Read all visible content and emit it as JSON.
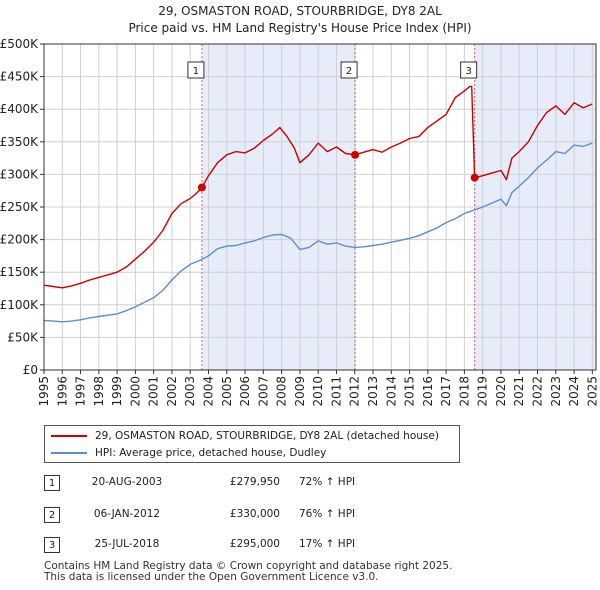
{
  "title_line1": "29, OSMASTON ROAD, STOURBRIDGE, DY8 2AL",
  "title_line2": "Price paid vs. HM Land Registry's House Price Index (HPI)",
  "colors": {
    "price_line": "#cc0000",
    "hpi_line": "#5b8ed0",
    "shade": "#e6ecfa",
    "marker_line": "#e06060",
    "grid": "#d0d0d0"
  },
  "chart_data": {
    "type": "line",
    "title": "29, OSMASTON ROAD, STOURBRIDGE, DY8 2AL — Price paid vs. HM Land Registry's House Price Index (HPI)",
    "xlabel": "",
    "ylabel": "",
    "xlim": [
      1995.0,
      2025.2
    ],
    "ylim": [
      0,
      500000
    ],
    "y_ticks": [
      0,
      50000,
      100000,
      150000,
      200000,
      250000,
      300000,
      350000,
      400000,
      450000,
      500000
    ],
    "y_tick_labels": [
      "£0",
      "£50K",
      "£100K",
      "£150K",
      "£200K",
      "£250K",
      "£300K",
      "£350K",
      "£400K",
      "£450K",
      "£500K"
    ],
    "x_ticks": [
      1995,
      1996,
      1997,
      1998,
      1999,
      2000,
      2001,
      2002,
      2003,
      2004,
      2005,
      2006,
      2007,
      2008,
      2009,
      2010,
      2011,
      2012,
      2013,
      2014,
      2015,
      2016,
      2017,
      2018,
      2019,
      2020,
      2021,
      2022,
      2023,
      2024,
      2025
    ],
    "x_tick_labels": [
      "1995",
      "1996",
      "1997",
      "1998",
      "1999",
      "2000",
      "2001",
      "2002",
      "2003",
      "2004",
      "2005",
      "2006",
      "2007",
      "2008",
      "2009",
      "2010",
      "2011",
      "2012",
      "2013",
      "2014",
      "2015",
      "2016",
      "2017",
      "2018",
      "2019",
      "2020",
      "2021",
      "2022",
      "2023",
      "2024",
      "2025"
    ],
    "grid": true,
    "series": [
      {
        "name": "29, OSMASTON ROAD, STOURBRIDGE, DY8 2AL (detached house)",
        "color": "#cc0000",
        "x": [
          1995.0,
          1995.5,
          1996.0,
          1996.5,
          1997.0,
          1997.5,
          1998.0,
          1998.5,
          1999.0,
          1999.5,
          2000.0,
          2000.5,
          2001.0,
          2001.5,
          2002.0,
          2002.5,
          2003.0,
          2003.3,
          2003.64,
          2004.0,
          2004.5,
          2005.0,
          2005.5,
          2006.0,
          2006.5,
          2007.0,
          2007.5,
          2007.9,
          2008.3,
          2008.7,
          2009.0,
          2009.5,
          2010.0,
          2010.5,
          2011.0,
          2011.5,
          2012.02,
          2012.5,
          2013.0,
          2013.5,
          2014.0,
          2014.5,
          2015.0,
          2015.5,
          2016.0,
          2016.5,
          2017.0,
          2017.5,
          2018.0,
          2018.3,
          2018.4,
          2018.56,
          2019.0,
          2019.5,
          2020.0,
          2020.3,
          2020.6,
          2021.0,
          2021.5,
          2022.0,
          2022.5,
          2023.0,
          2023.5,
          2024.0,
          2024.5,
          2025.0
        ],
        "y": [
          130000,
          128000,
          126000,
          129000,
          133000,
          138000,
          142000,
          146000,
          150000,
          158000,
          170000,
          182000,
          196000,
          214000,
          240000,
          255000,
          263000,
          270000,
          279950,
          298000,
          318000,
          330000,
          335000,
          333000,
          340000,
          352000,
          362000,
          372000,
          358000,
          340000,
          318000,
          330000,
          348000,
          335000,
          342000,
          332000,
          330000,
          334000,
          338000,
          334000,
          342000,
          348000,
          355000,
          358000,
          372000,
          382000,
          392000,
          418000,
          428000,
          435000,
          435000,
          295000,
          298000,
          302000,
          306000,
          292000,
          325000,
          335000,
          350000,
          375000,
          395000,
          405000,
          392000,
          410000,
          402000,
          408000
        ]
      },
      {
        "name": "HPI: Average price, detached house, Dudley",
        "color": "#5b8ed0",
        "x": [
          1995.0,
          1995.5,
          1996.0,
          1996.5,
          1997.0,
          1997.5,
          1998.0,
          1998.5,
          1999.0,
          1999.5,
          2000.0,
          2000.5,
          2001.0,
          2001.5,
          2002.0,
          2002.5,
          2003.0,
          2003.5,
          2004.0,
          2004.5,
          2005.0,
          2005.5,
          2006.0,
          2006.5,
          2007.0,
          2007.5,
          2008.0,
          2008.5,
          2009.0,
          2009.5,
          2010.0,
          2010.5,
          2011.0,
          2011.5,
          2012.0,
          2012.5,
          2013.0,
          2013.5,
          2014.0,
          2014.5,
          2015.0,
          2015.5,
          2016.0,
          2016.5,
          2017.0,
          2017.5,
          2018.0,
          2018.5,
          2019.0,
          2019.5,
          2020.0,
          2020.3,
          2020.6,
          2021.0,
          2021.5,
          2022.0,
          2022.5,
          2023.0,
          2023.5,
          2024.0,
          2024.5,
          2025.0
        ],
        "y": [
          76000,
          75000,
          74000,
          75000,
          77000,
          80000,
          82000,
          84000,
          86000,
          91000,
          97000,
          104000,
          111000,
          122000,
          138000,
          152000,
          162000,
          168000,
          175000,
          186000,
          190000,
          191000,
          195000,
          198000,
          203000,
          207000,
          208000,
          202000,
          185000,
          188000,
          198000,
          193000,
          195000,
          190000,
          188000,
          189000,
          191000,
          193000,
          196000,
          199000,
          202000,
          206000,
          212000,
          218000,
          226000,
          232000,
          240000,
          245000,
          250000,
          256000,
          262000,
          252000,
          272000,
          282000,
          295000,
          310000,
          322000,
          335000,
          332000,
          345000,
          343000,
          348000
        ]
      }
    ],
    "transactions": [
      {
        "label": "1",
        "x": 2003.64,
        "price": 279950
      },
      {
        "label": "2",
        "x": 2012.02,
        "price": 330000
      },
      {
        "label": "3",
        "x": 2018.56,
        "price": 295000
      }
    ]
  },
  "legend": {
    "items": [
      {
        "label": "29, OSMASTON ROAD, STOURBRIDGE, DY8 2AL (detached house)"
      },
      {
        "label": "HPI: Average price, detached house, Dudley"
      }
    ]
  },
  "transactions_table": [
    {
      "num": "1",
      "date": "20-AUG-2003",
      "price": "£279,950",
      "hpi": "72% ↑ HPI"
    },
    {
      "num": "2",
      "date": "06-JAN-2012",
      "price": "£330,000",
      "hpi": "76% ↑ HPI"
    },
    {
      "num": "3",
      "date": "25-JUL-2018",
      "price": "£295,000",
      "hpi": "17% ↑ HPI"
    }
  ],
  "footer": {
    "line1": "Contains HM Land Registry data © Crown copyright and database right 2025.",
    "line2": "This data is licensed under the Open Government Licence v3.0."
  }
}
